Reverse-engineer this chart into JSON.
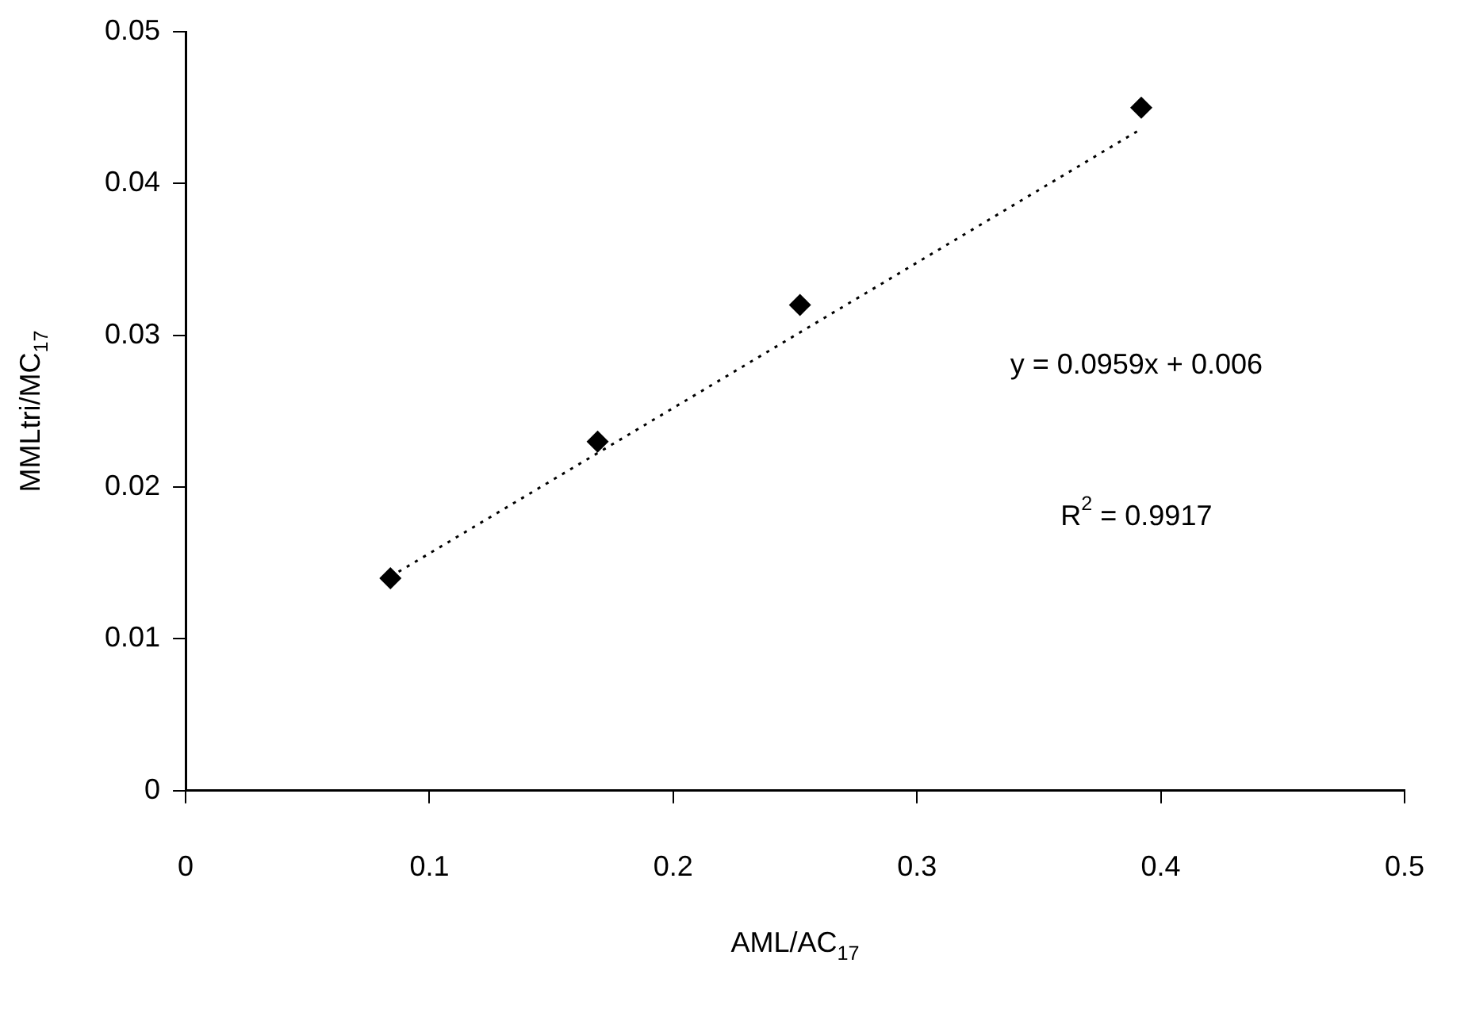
{
  "chart_data": {
    "type": "scatter",
    "xlabel": "AML/AC$_{17}$",
    "ylabel": "MMLtri/MC$_{17}$",
    "xlim": [
      0,
      0.5
    ],
    "xticks": [
      0,
      0.1,
      0.2,
      0.3,
      0.4,
      0.5
    ],
    "ylim": [
      0,
      0.05
    ],
    "yticks": [
      0,
      0.01,
      0.02,
      0.03,
      0.04,
      0.05
    ],
    "grid": false,
    "series": [
      {
        "color": "#000000",
        "marker": "diamond",
        "x": [
          0.084,
          0.169,
          0.252,
          0.392
        ],
        "values": [
          0.014,
          0.023,
          0.032,
          0.045
        ]
      },
      {
        "type": "line",
        "color": "#000000",
        "marker": "none",
        "line_style": "dotted",
        "x": [
          0.084,
          0.392
        ],
        "values": [
          0.0141,
          0.0436
        ]
      }
    ],
    "annotations": [
      "y = 0.0959x + 0.006",
      "R$^{2}$ = 0.9917"
    ]
  }
}
